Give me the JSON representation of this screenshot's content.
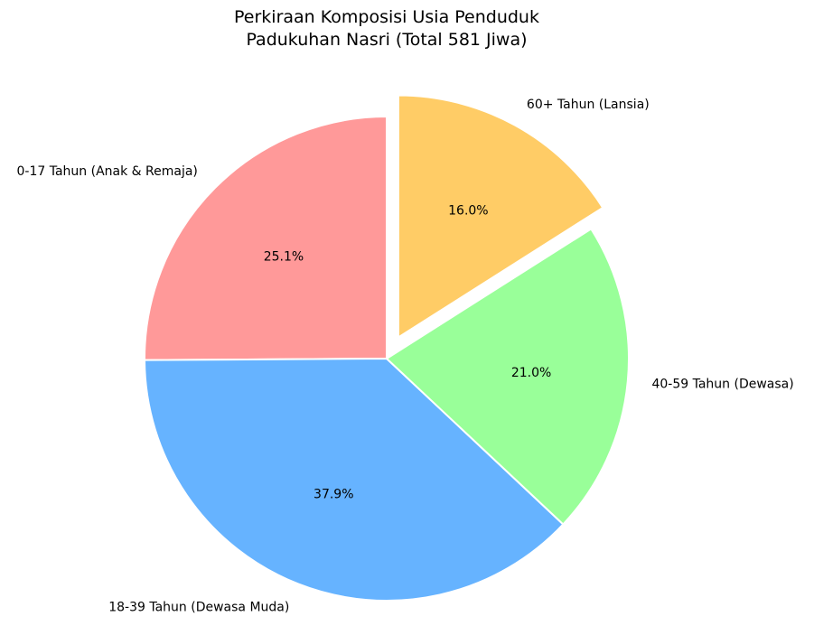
{
  "chart_data": {
    "type": "pie",
    "title": [
      "Perkiraan Komposisi Usia Penduduk",
      "Padukuhan Nasri (Total 581 Jiwa)"
    ],
    "categories": [
      "0-17 Tahun (Anak & Remaja)",
      "18-39 Tahun (Dewasa Muda)",
      "40-59 Tahun (Dewasa)",
      "60+ Tahun (Lansia)"
    ],
    "values": [
      25.1,
      37.9,
      21.0,
      16.0
    ],
    "percent_labels": [
      "25.1%",
      "37.9%",
      "21.0%",
      "16.0%"
    ],
    "colors": [
      "#ff9999",
      "#66b3ff",
      "#99ff99",
      "#ffcc66"
    ],
    "exploded": [
      false,
      false,
      false,
      true
    ],
    "start_angle_deg": 90,
    "direction": "counterclockwise",
    "edge_color": "#ffffff"
  }
}
